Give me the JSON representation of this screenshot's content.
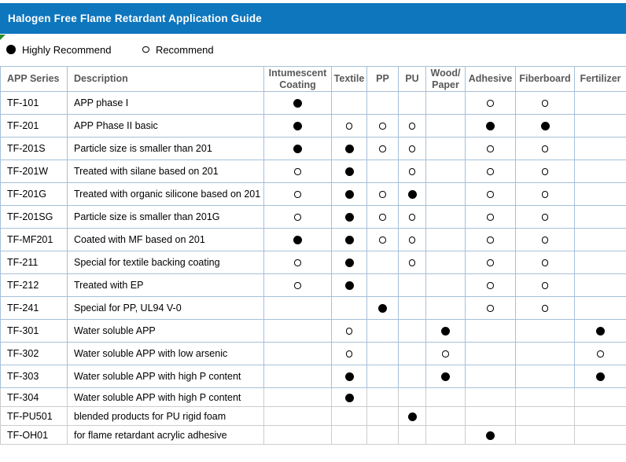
{
  "title": "Halogen Free Flame Retardant Application Guide",
  "legend": {
    "highly_recommend": "Highly Recommend",
    "recommend": "Recommend"
  },
  "table": {
    "columns": [
      "APP Series",
      "Description",
      "Intumescent Coating",
      "Textile",
      "PP",
      "PU",
      "Wood/Paper",
      "Adhesive",
      "Fiberboard",
      "Fertilizer"
    ],
    "mark_meaning": {
      "filled": "Highly Recommend",
      "hollow": "Recommend"
    },
    "rows": [
      {
        "series": "TF-101",
        "description": "APP phase I",
        "marks": [
          "filled",
          "",
          "",
          "",
          "",
          "hollow",
          "hollow",
          ""
        ]
      },
      {
        "series": "TF-201",
        "description": "APP Phase II basic",
        "marks": [
          "filled",
          "hollow",
          "hollow",
          "hollow",
          "",
          "filled",
          "filled",
          ""
        ]
      },
      {
        "series": "TF-201S",
        "description": "Particle size is smaller than 201",
        "marks": [
          "filled",
          "filled",
          "hollow",
          "hollow",
          "",
          "hollow",
          "hollow",
          ""
        ]
      },
      {
        "series": "TF-201W",
        "description": "Treated with silane based on 201",
        "marks": [
          "hollow",
          "filled",
          "",
          "hollow",
          "",
          "hollow",
          "hollow",
          ""
        ]
      },
      {
        "series": "TF-201G",
        "description": "Treated with organic silicone based on 201",
        "marks": [
          "hollow",
          "filled",
          "hollow",
          "filled",
          "",
          "hollow",
          "hollow",
          ""
        ]
      },
      {
        "series": "TF-201SG",
        "description": "Particle size is smaller than 201G",
        "marks": [
          "hollow",
          "filled",
          "hollow",
          "hollow",
          "",
          "hollow",
          "hollow",
          ""
        ]
      },
      {
        "series": "TF-MF201",
        "description": "Coated with MF based on 201",
        "marks": [
          "filled",
          "filled",
          "hollow",
          "hollow",
          "",
          "hollow",
          "hollow",
          ""
        ]
      },
      {
        "series": "TF-211",
        "description": "Special for textile backing coating",
        "marks": [
          "hollow",
          "filled",
          "",
          "hollow",
          "",
          "hollow",
          "hollow",
          ""
        ]
      },
      {
        "series": "TF-212",
        "description": "Treated with EP",
        "marks": [
          "hollow",
          "filled",
          "",
          "",
          "",
          "hollow",
          "hollow",
          ""
        ]
      },
      {
        "series": "TF-241",
        "description": "Special for PP, UL94 V-0",
        "marks": [
          "",
          "",
          "filled",
          "",
          "",
          "hollow",
          "hollow",
          ""
        ]
      },
      {
        "series": "TF-301",
        "description": "Water soluble APP",
        "marks": [
          "",
          "hollow",
          "",
          "",
          "filled",
          "",
          "",
          "filled"
        ]
      },
      {
        "series": "TF-302",
        "description": "Water soluble APP with low arsenic",
        "marks": [
          "",
          "hollow",
          "",
          "",
          "hollow",
          "",
          "",
          "hollow"
        ]
      },
      {
        "series": "TF-303",
        "description": "Water soluble APP with high P content",
        "marks": [
          "",
          "filled",
          "",
          "",
          "filled",
          "",
          "",
          "filled"
        ]
      },
      {
        "series": "TF-304",
        "description": "Water soluble APP with high P content",
        "marks": [
          "",
          "filled",
          "",
          "",
          "",
          "",
          "",
          ""
        ]
      },
      {
        "series": "TF-PU501",
        "description": "blended products for PU rigid foam",
        "marks": [
          "",
          "",
          "",
          "filled",
          "",
          "",
          "",
          ""
        ]
      },
      {
        "series": "TF-OH01",
        "description": "for flame retardant acrylic adhesive",
        "marks": [
          "",
          "",
          "",
          "",
          "",
          "filled",
          "",
          ""
        ]
      }
    ]
  },
  "colors": {
    "title_bar_background": "#0e76bd",
    "title_text": "#ffffff",
    "header_text": "#595959",
    "table_border": "#a6c0d8",
    "lower_gridline": "#cccccc",
    "mark_color": "#000000",
    "corner_marker_green": "#2d8a2d"
  }
}
